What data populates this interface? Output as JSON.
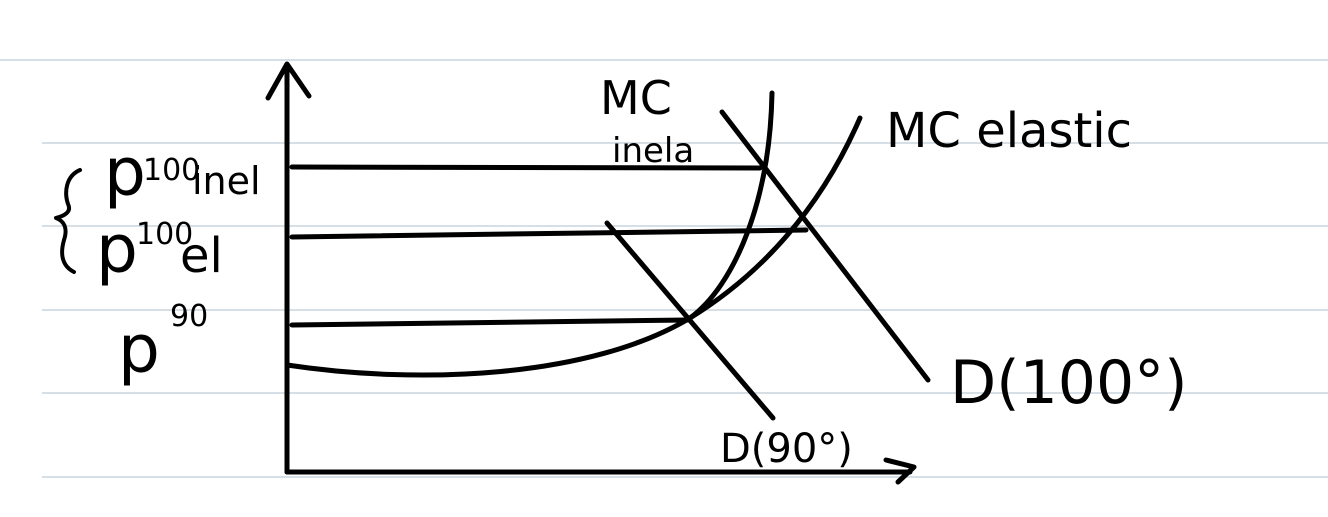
{
  "colors": {
    "paper": "#ffffff",
    "ruled_line": "#c9d3dd",
    "ink": "#000000"
  },
  "labels": {
    "p100_inel_base": "p",
    "p100_inel_sup": "100",
    "p100_inel_sub": "inel",
    "p100_el_base": "p",
    "p100_el_sup": "100",
    "p100_el_sub": "el",
    "p90_base": "p",
    "p90_sup": "90",
    "mc_inelastic_line1": "MC",
    "mc_inelastic_line2": "inela",
    "mc_elastic": "MC elastic",
    "demand_100": "D(100°)",
    "demand_90": "D(90°)"
  }
}
